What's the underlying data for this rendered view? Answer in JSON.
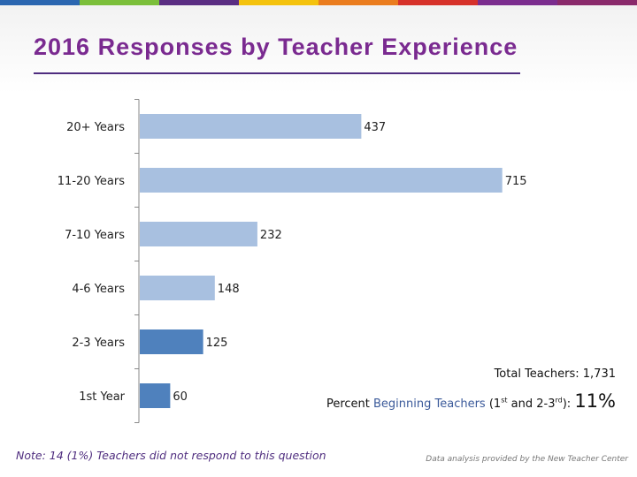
{
  "colors": {
    "stripe": [
      "#2b66b0",
      "#7bbf3a",
      "#5a2d82",
      "#f4c20d",
      "#ea7c1e",
      "#d6312a",
      "#7b2d8e",
      "#8a2a6b"
    ],
    "title": "#7a2a90",
    "bar_light": "#a8c0e0",
    "bar_dark": "#4f81bd"
  },
  "title": "2016 Responses by Teacher Experience",
  "chart_data": {
    "type": "bar",
    "orientation": "horizontal",
    "categories": [
      "20+ Years",
      "11-20 Years",
      "7-10 Years",
      "4-6 Years",
      "2-3 Years",
      "1st Year"
    ],
    "values": [
      437,
      715,
      232,
      148,
      125,
      60
    ],
    "data_labels": [
      "437",
      "715",
      "232",
      "148",
      "125",
      "60"
    ],
    "highlighted_categories": [
      "2-3 Years",
      "1st Year"
    ],
    "xlim": [
      0,
      720
    ],
    "grid": false,
    "legend": "none"
  },
  "stats": {
    "total": "Total Teachers: 1,731",
    "pct_prefix": "Percent ",
    "pct_highlight": "Beginning Teachers",
    "pct_part1": " (1",
    "pct_sup1": "st",
    "pct_part2": " and 2-3",
    "pct_sup2": "rd",
    "pct_part3": "): ",
    "pct_value": "11%"
  },
  "note": "Note: 14 (1%) Teachers did not respond to this question",
  "credit": "Data analysis provided by the New Teacher Center"
}
